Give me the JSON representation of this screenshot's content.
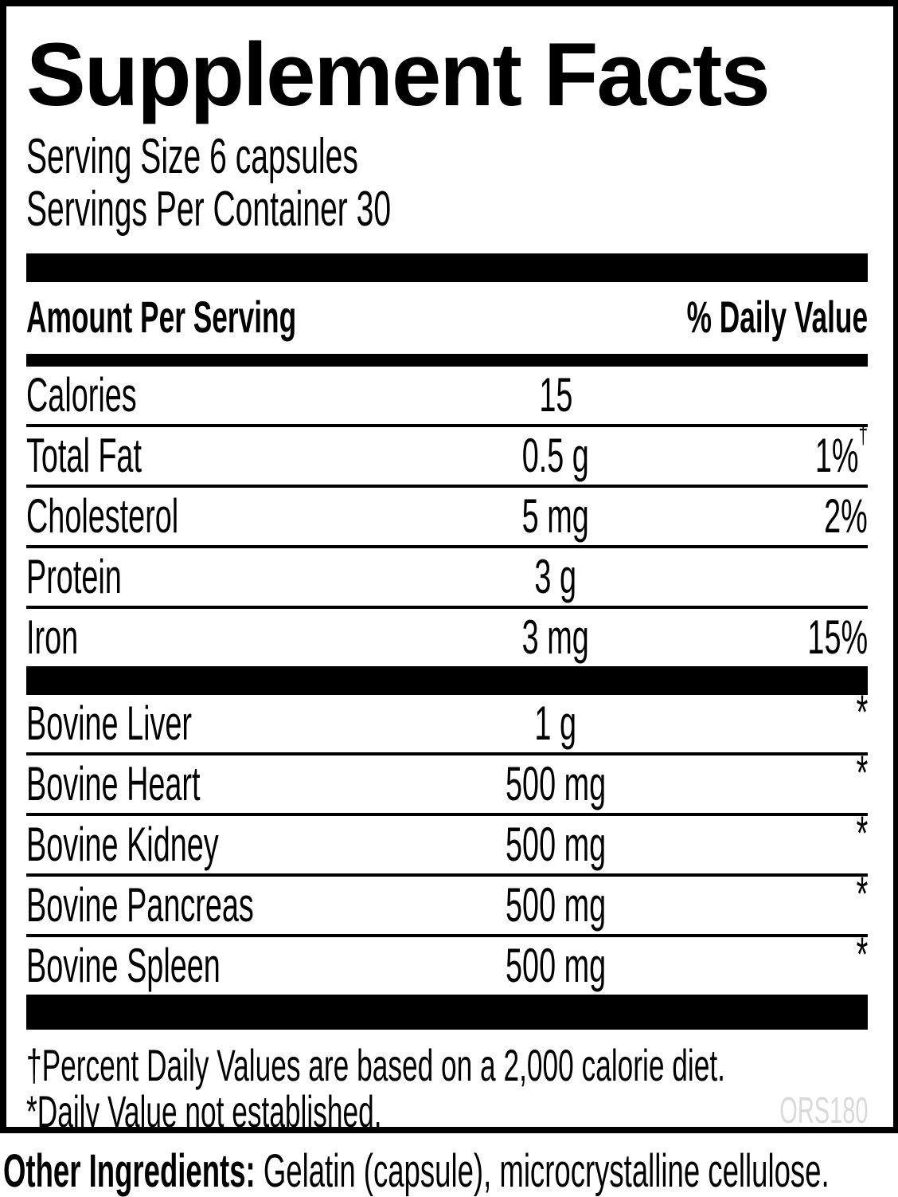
{
  "label": {
    "title": "Supplement Facts",
    "serving_size": "Serving Size 6 capsules",
    "servings_per_container": "Servings Per Container 30",
    "columns": {
      "amount_header": "Amount Per Serving",
      "daily_value_header": "% Daily Value"
    },
    "nutrients": [
      {
        "name": "Calories",
        "amount": "15",
        "dv": "",
        "sup": ""
      },
      {
        "name": "Total Fat",
        "amount": "0.5 g",
        "dv": "1%",
        "sup": "†"
      },
      {
        "name": "Cholesterol",
        "amount": "5 mg",
        "dv": "2%",
        "sup": ""
      },
      {
        "name": "Protein",
        "amount": "3 g",
        "dv": "",
        "sup": ""
      },
      {
        "name": "Iron",
        "amount": "3 mg",
        "dv": "15%",
        "sup": ""
      }
    ],
    "ingredients": [
      {
        "name": "Bovine Liver",
        "amount": "1 g",
        "dv": "*"
      },
      {
        "name": "Bovine Heart",
        "amount": "500 mg",
        "dv": "*"
      },
      {
        "name": "Bovine Kidney",
        "amount": "500 mg",
        "dv": "*"
      },
      {
        "name": "Bovine Pancreas",
        "amount": "500 mg",
        "dv": "*"
      },
      {
        "name": "Bovine Spleen",
        "amount": "500 mg",
        "dv": "*"
      }
    ],
    "footnotes": [
      "†Percent Daily Values are based on a 2,000 calorie diet.",
      "*Daily Value not established."
    ],
    "code": "ORS180",
    "other_ingredients_label": "Other Ingredients:",
    "other_ingredients_rest": " Gelatin (capsule), microcrystalline cellulose.",
    "colors": {
      "text": "#000000",
      "background": "#ffffff",
      "code_gray": "#d9d9d9"
    }
  }
}
